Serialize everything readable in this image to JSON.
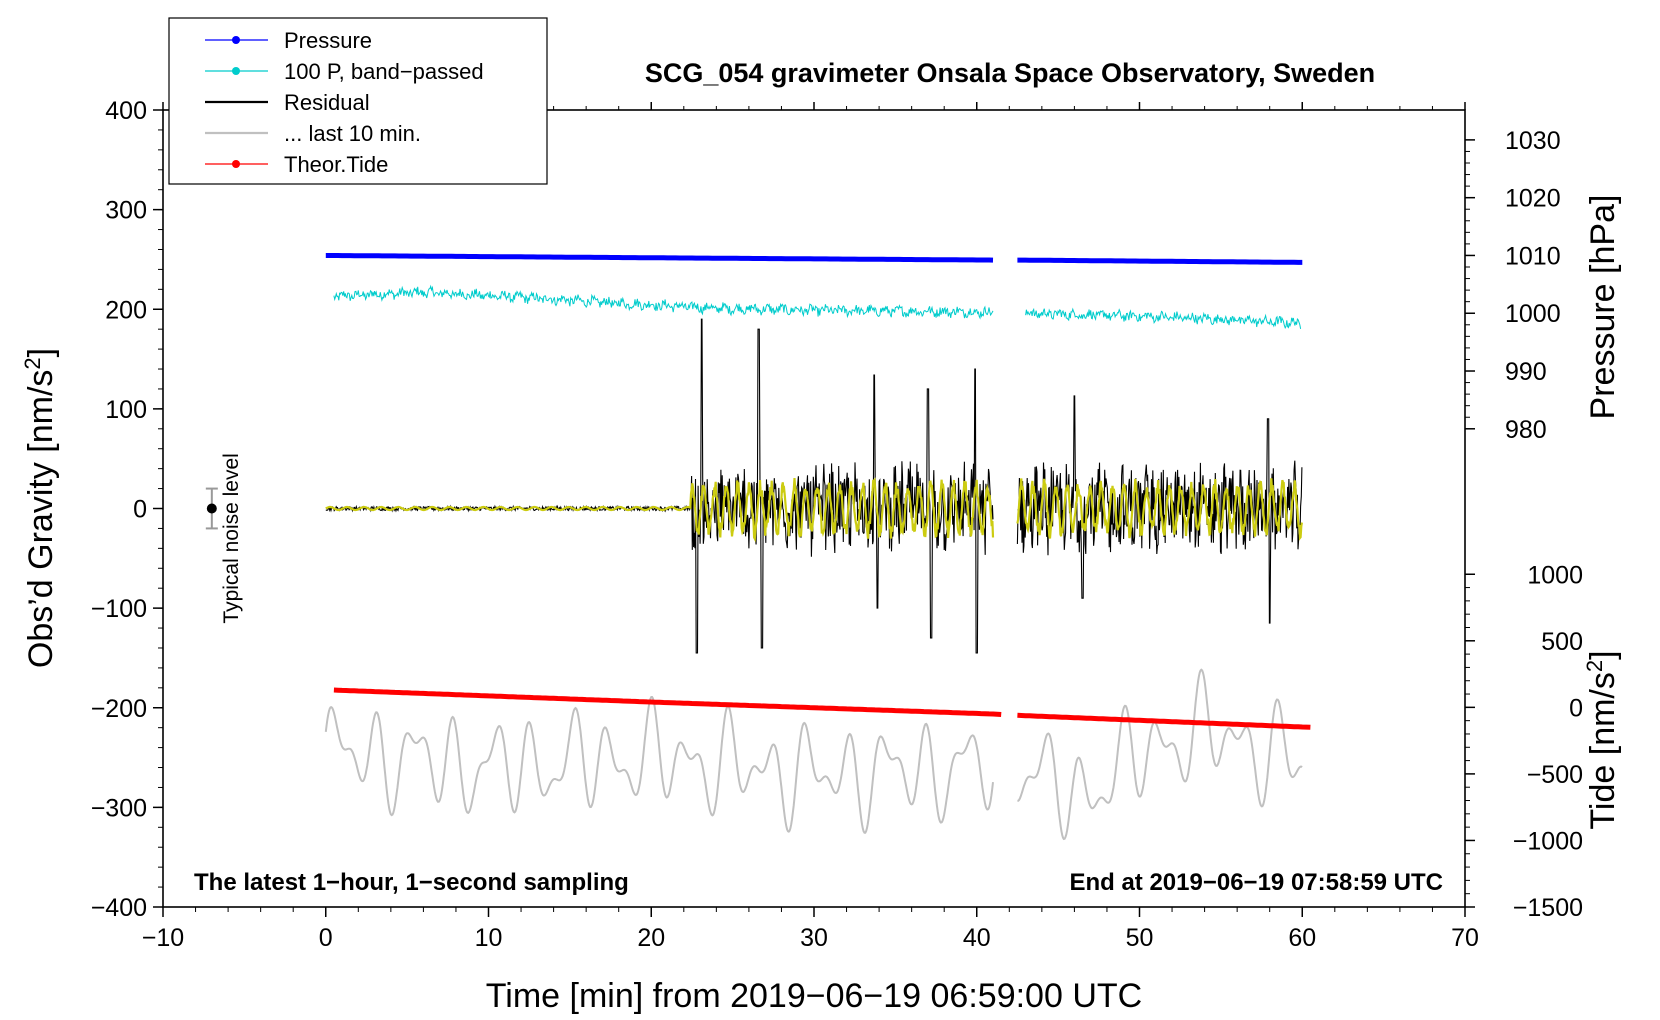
{
  "chart_data": {
    "type": "line",
    "title": "SCG_054 gravimeter Onsala Space Observatory, Sweden",
    "xlabel": "Time [min] from 2019−06−19 06:59:00 UTC",
    "ylabel": "Obs’d Gravity [nm/s",
    "ylabel_sup": "2",
    "ylabel_end": "]",
    "right_label_pressure": "Pressure [hPa]",
    "right_label_tide": "Tide [nm/s",
    "right_label_tide_sup": "2",
    "right_label_tide_end": "]",
    "xlim": [
      -10,
      70
    ],
    "ylim": [
      -400,
      400
    ],
    "x_ticks": [
      {
        "v": -10,
        "label": "−10"
      },
      {
        "v": 0,
        "label": "0"
      },
      {
        "v": 10,
        "label": "10"
      },
      {
        "v": 20,
        "label": "20"
      },
      {
        "v": 30,
        "label": "30"
      },
      {
        "v": 40,
        "label": "40"
      },
      {
        "v": 50,
        "label": "50"
      },
      {
        "v": 60,
        "label": "60"
      },
      {
        "v": 70,
        "label": "70"
      }
    ],
    "y_ticks": [
      {
        "v": 400,
        "label": "400"
      },
      {
        "v": 300,
        "label": "300"
      },
      {
        "v": 200,
        "label": "200"
      },
      {
        "v": 100,
        "label": "100"
      },
      {
        "v": 0,
        "label": "0"
      },
      {
        "v": -100,
        "label": "−100"
      },
      {
        "v": -200,
        "label": "−200"
      },
      {
        "v": -300,
        "label": "−300"
      },
      {
        "v": -400,
        "label": "−400"
      }
    ],
    "pressure_axis": {
      "range_hPa": [
        980,
        1030
      ],
      "gravity_equiv": [
        80,
        370
      ],
      "ticks": [
        {
          "v": 1030,
          "label": "1030"
        },
        {
          "v": 1020,
          "label": "1020"
        },
        {
          "v": 1010,
          "label": "1010"
        },
        {
          "v": 1000,
          "label": "1000"
        },
        {
          "v": 990,
          "label": "990"
        },
        {
          "v": 980,
          "label": "980"
        }
      ]
    },
    "tide_axis": {
      "range": [
        -1500,
        1000
      ],
      "gravity_equiv": [
        -400,
        -66
      ],
      "ticks": [
        {
          "v": 1000,
          "label": "1000"
        },
        {
          "v": 500,
          "label": "500"
        },
        {
          "v": 0,
          "label": "0"
        },
        {
          "v": -500,
          "label": "−500"
        },
        {
          "v": -1000,
          "label": "−1000"
        },
        {
          "v": -1500,
          "label": "−1500"
        }
      ]
    },
    "series": [
      {
        "name": "Pressure",
        "color": "#0000ff",
        "axis": "pressure",
        "points": [
          [
            0,
            1010.0
          ],
          [
            20,
            1009.6
          ],
          [
            41,
            1009.2
          ],
          [
            42.5,
            1009.2
          ],
          [
            60,
            1008.8
          ]
        ]
      },
      {
        "name": "100 P, band−passed",
        "color": "#00cccc",
        "axis": "gravity",
        "points": [
          [
            0.5,
            213
          ],
          [
            6,
            217
          ],
          [
            12,
            212
          ],
          [
            18,
            206
          ],
          [
            24,
            201
          ],
          [
            30,
            199
          ],
          [
            36,
            198
          ],
          [
            41,
            197
          ],
          [
            43,
            196
          ],
          [
            50,
            193
          ],
          [
            55,
            190
          ],
          [
            59.9,
            186
          ]
        ]
      },
      {
        "name": "Residual",
        "color": "#000000",
        "axis": "gravity",
        "points": [
          [
            0,
            0
          ],
          [
            22,
            0
          ],
          [
            22.8,
            -145
          ],
          [
            23.1,
            190
          ],
          [
            26.6,
            180
          ],
          [
            26.8,
            -140
          ],
          [
            33.7,
            134
          ],
          [
            33.9,
            -100
          ],
          [
            37,
            120
          ],
          [
            37.2,
            -130
          ],
          [
            39.9,
            140
          ],
          [
            40,
            -145
          ],
          [
            41,
            0
          ],
          [
            42.5,
            0
          ],
          [
            46,
            113
          ],
          [
            46.5,
            -90
          ],
          [
            57.9,
            90
          ],
          [
            58,
            -115
          ],
          [
            60,
            0
          ]
        ]
      },
      {
        "name": "... last 10 min.",
        "color": "#c0c0c0",
        "axis": "gravity",
        "points": [
          [
            0,
            -220
          ],
          [
            10,
            -270
          ],
          [
            20,
            -240
          ],
          [
            30,
            -290
          ],
          [
            40,
            -270
          ],
          [
            42.5,
            -250
          ],
          [
            46,
            -360
          ],
          [
            50,
            -230
          ],
          [
            54,
            -160
          ],
          [
            60,
            -260
          ]
        ]
      },
      {
        "name": "Theor.Tide",
        "color": "#ff0000",
        "axis": "tide",
        "points": [
          [
            0.5,
            130
          ],
          [
            20,
            40
          ],
          [
            41,
            -50
          ],
          [
            42.5,
            -60
          ],
          [
            60.5,
            -150
          ]
        ]
      }
    ],
    "noise_marker": {
      "x": -7,
      "y": 0,
      "err": 20,
      "label": "Typical noise level"
    },
    "note_left": "The latest 1−hour, 1−second sampling",
    "note_right": "End at 2019−06−19 07:58:59 UTC",
    "legend": [
      {
        "label": "Pressure",
        "color": "#0000ff",
        "marker": true
      },
      {
        "label": "100 P, band−passed",
        "color": "#00cccc",
        "marker": true
      },
      {
        "label": "Residual",
        "color": "#000000",
        "marker": false
      },
      {
        "label": "... last 10 min.",
        "color": "#c0c0c0",
        "marker": false
      },
      {
        "label": "Theor.Tide",
        "color": "#ff0000",
        "marker": true
      }
    ]
  }
}
